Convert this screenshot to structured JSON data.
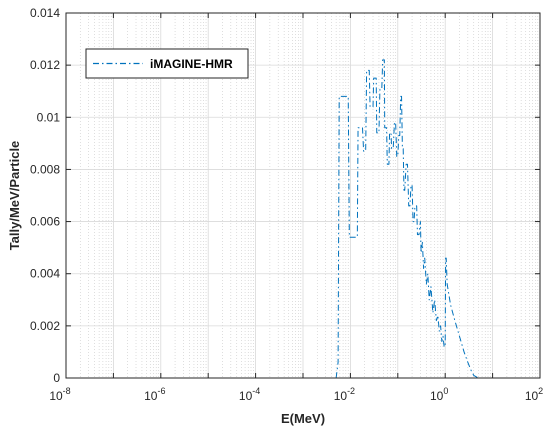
{
  "chart_data": {
    "type": "line",
    "xscale": "log",
    "xlim": [
      1e-08,
      100
    ],
    "ylim": [
      0,
      0.014
    ],
    "xlabel": "E(MeV)",
    "ylabel": "Tally/MeV/Particle",
    "grid": true,
    "minor_grid": true,
    "legend_position": "top-left",
    "x_ticks": [
      {
        "base": "10",
        "exp": "-8"
      },
      {
        "base": "10",
        "exp": "-6"
      },
      {
        "base": "10",
        "exp": "-4"
      },
      {
        "base": "10",
        "exp": "-2"
      },
      {
        "base": "10",
        "exp": "0"
      },
      {
        "base": "10",
        "exp": "2"
      }
    ],
    "y_ticks": [
      "0",
      "0.002",
      "0.004",
      "0.006",
      "0.008",
      "0.01",
      "0.012",
      "0.014"
    ],
    "series": [
      {
        "name": "iMAGINE-HMR",
        "color": "#0072BD",
        "line_style": "dash-dot",
        "points": [
          [
            1e-08,
            0
          ],
          [
            1e-06,
            0
          ],
          [
            0.0001,
            0
          ],
          [
            0.001,
            0
          ],
          [
            0.005,
            0
          ],
          [
            0.0055,
            0.0006
          ],
          [
            0.0058,
            0.0108
          ],
          [
            0.009,
            0.0108
          ],
          [
            0.0095,
            0.0054
          ],
          [
            0.014,
            0.0054
          ],
          [
            0.0145,
            0.0096
          ],
          [
            0.018,
            0.0096
          ],
          [
            0.019,
            0.0087
          ],
          [
            0.021,
            0.0087
          ],
          [
            0.022,
            0.0118
          ],
          [
            0.025,
            0.0118
          ],
          [
            0.026,
            0.0104
          ],
          [
            0.03,
            0.0104
          ],
          [
            0.031,
            0.0115
          ],
          [
            0.035,
            0.0115
          ],
          [
            0.036,
            0.0094
          ],
          [
            0.04,
            0.0094
          ],
          [
            0.042,
            0.0111
          ],
          [
            0.046,
            0.0111
          ],
          [
            0.048,
            0.0122
          ],
          [
            0.052,
            0.0122
          ],
          [
            0.053,
            0.0096
          ],
          [
            0.058,
            0.0096
          ],
          [
            0.06,
            0.0082
          ],
          [
            0.065,
            0.0082
          ],
          [
            0.067,
            0.0094
          ],
          [
            0.072,
            0.0094
          ],
          [
            0.074,
            0.0088
          ],
          [
            0.08,
            0.0088
          ],
          [
            0.085,
            0.0098
          ],
          [
            0.09,
            0.0098
          ],
          [
            0.095,
            0.0085
          ],
          [
            0.1,
            0.0085
          ],
          [
            0.105,
            0.0093
          ],
          [
            0.11,
            0.0093
          ],
          [
            0.115,
            0.0108
          ],
          [
            0.12,
            0.0108
          ],
          [
            0.125,
            0.0088
          ],
          [
            0.13,
            0.0088
          ],
          [
            0.135,
            0.0072
          ],
          [
            0.14,
            0.0072
          ],
          [
            0.15,
            0.0082
          ],
          [
            0.16,
            0.0082
          ],
          [
            0.17,
            0.0066
          ],
          [
            0.18,
            0.0066
          ],
          [
            0.19,
            0.0074
          ],
          [
            0.2,
            0.0074
          ],
          [
            0.21,
            0.006
          ],
          [
            0.22,
            0.006
          ],
          [
            0.23,
            0.0066
          ],
          [
            0.25,
            0.0066
          ],
          [
            0.26,
            0.0055
          ],
          [
            0.28,
            0.0055
          ],
          [
            0.3,
            0.006
          ],
          [
            0.31,
            0.0048
          ],
          [
            0.33,
            0.0052
          ],
          [
            0.35,
            0.0042
          ],
          [
            0.37,
            0.0046
          ],
          [
            0.4,
            0.0036
          ],
          [
            0.43,
            0.004
          ],
          [
            0.46,
            0.003
          ],
          [
            0.5,
            0.0035
          ],
          [
            0.55,
            0.0025
          ],
          [
            0.6,
            0.003
          ],
          [
            0.65,
            0.0022
          ],
          [
            0.7,
            0.0024
          ],
          [
            0.75,
            0.0018
          ],
          [
            0.8,
            0.002
          ],
          [
            0.85,
            0.0014
          ],
          [
            0.9,
            0.0016
          ],
          [
            0.95,
            0.0012
          ],
          [
            1.0,
            0.0012
          ],
          [
            1.02,
            0.0046
          ],
          [
            1.05,
            0.0046
          ],
          [
            1.1,
            0.0036
          ],
          [
            1.3,
            0.0028
          ],
          [
            1.6,
            0.0022
          ],
          [
            2.0,
            0.0016
          ],
          [
            2.5,
            0.001
          ],
          [
            3.0,
            0.0006
          ],
          [
            3.5,
            0.0003
          ],
          [
            4.0,
            0.0001
          ],
          [
            5.0,
            0
          ]
        ]
      }
    ]
  }
}
